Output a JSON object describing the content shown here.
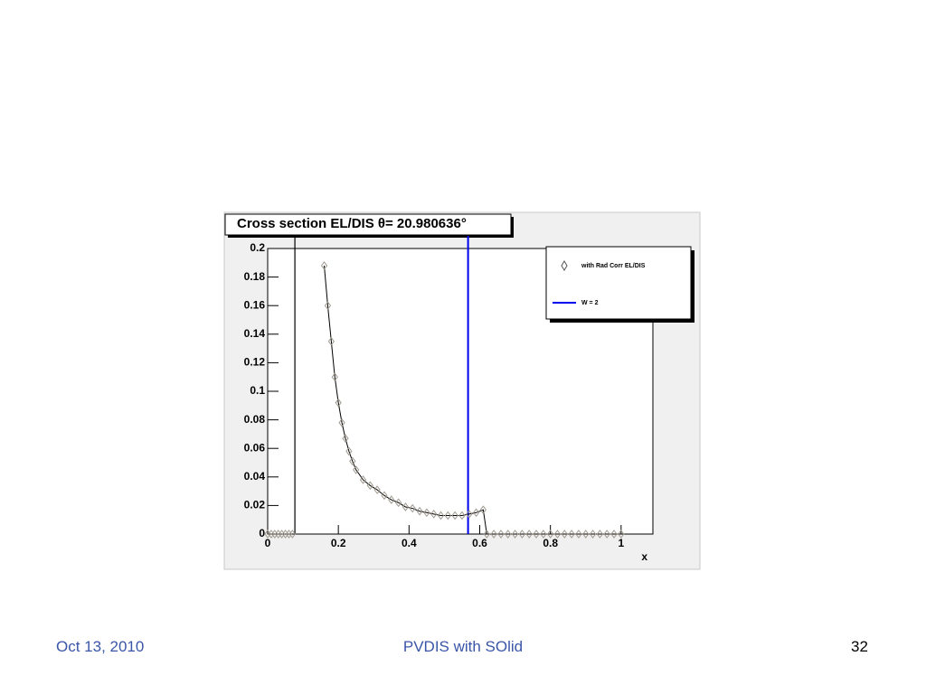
{
  "chart_data": {
    "type": "scatter",
    "title": "Cross section EL/DIS θ= 20.980636°",
    "x_label": "x",
    "xlim": [
      0,
      1.09
    ],
    "ylim": [
      0,
      0.2
    ],
    "xticks": [
      0,
      0.2,
      0.4,
      0.6,
      0.8,
      1
    ],
    "yticks": [
      0,
      0.02,
      0.04,
      0.06,
      0.08,
      0.1,
      0.12,
      0.14,
      0.16,
      0.18,
      0.2
    ],
    "x": [
      0,
      0.01,
      0.02,
      0.03,
      0.04,
      0.05,
      0.06,
      0.07,
      null,
      0.16,
      0.17,
      0.18,
      0.19,
      0.2,
      0.21,
      0.22,
      0.23,
      0.24,
      0.25,
      0.27,
      0.29,
      0.31,
      0.33,
      0.35,
      0.37,
      0.39,
      0.41,
      0.43,
      0.45,
      0.47,
      0.49,
      0.51,
      0.53,
      0.55,
      0.57,
      0.59,
      0.61,
      0.62,
      0.64,
      0.66,
      0.68,
      0.7,
      0.72,
      0.74,
      0.76,
      0.78,
      0.8,
      0.82,
      0.84,
      0.86,
      0.88,
      0.9,
      0.92,
      0.94,
      0.96,
      0.98,
      1
    ],
    "series": [
      {
        "name": "with Rad Corr EL/DIS",
        "color": "#000000",
        "marker_color": "#a09a90",
        "values": [
          0,
          0,
          0,
          0,
          0,
          0,
          0,
          0,
          null,
          0.188,
          0.16,
          0.135,
          0.11,
          0.092,
          0.078,
          0.067,
          0.058,
          0.051,
          0.045,
          0.038,
          0.034,
          0.031,
          0.027,
          0.024,
          0.022,
          0.019,
          0.018,
          0.016,
          0.015,
          0.014,
          0.013,
          0.013,
          0.013,
          0.013,
          0.014,
          0.015,
          0.017,
          0,
          0,
          0,
          0,
          0,
          0,
          0,
          0,
          0,
          0,
          0,
          0,
          0,
          0,
          0,
          0,
          0,
          0,
          0,
          0
        ]
      }
    ],
    "vlines": [
      {
        "x": 0.077,
        "color": "#000000"
      },
      {
        "x": 0.567,
        "color": "#0000ee",
        "name": "W = 2"
      }
    ]
  },
  "footer": {
    "date": "Oct 13, 2010",
    "title": "PVDIS with SOlid",
    "page": "32"
  }
}
